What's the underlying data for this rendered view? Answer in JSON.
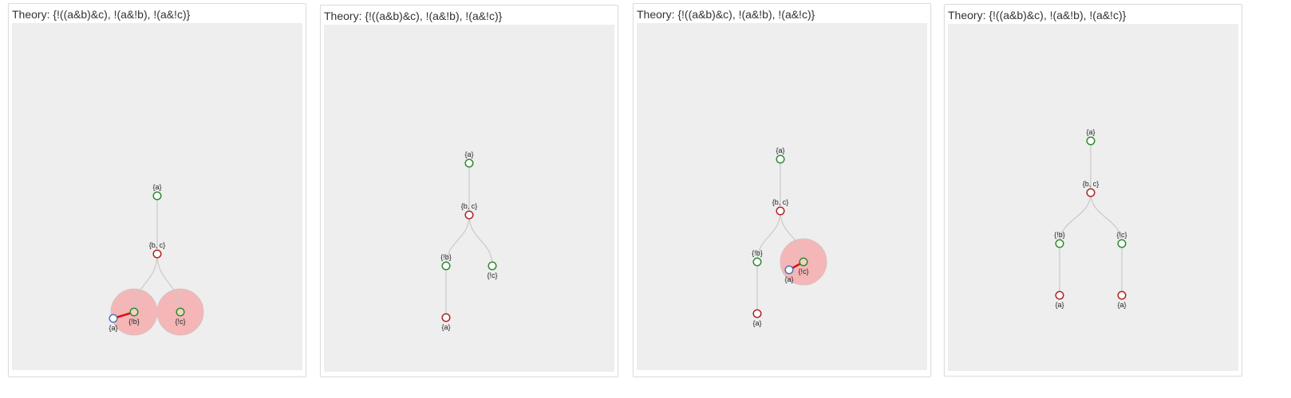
{
  "colors": {
    "satisfiable_node": "#2e8b2e",
    "unsatisfiable_node": "#b22222",
    "new_node": "#4a78b5",
    "edge": "#c9c9c9",
    "conflict_edge": "#e01010",
    "conflict_halo": "#f4b6b6"
  },
  "panels": [
    {
      "title": "Theory: {!((a&b)&c), !(a&!b), !(a&!c)}",
      "nodes": [
        {
          "id": "root",
          "label": "{a}",
          "status": "sat"
        },
        {
          "id": "n1",
          "label": "{b, c}",
          "status": "unsat"
        },
        {
          "id": "n2",
          "label": "{!b}",
          "status": "sat",
          "halo": true
        },
        {
          "id": "n3",
          "label": "{!c}",
          "status": "sat",
          "halo": true
        },
        {
          "id": "n4",
          "label": "{a}",
          "status": "new"
        }
      ],
      "edges": [
        {
          "from": "root",
          "to": "n1",
          "kind": "straight"
        },
        {
          "from": "n1",
          "to": "n2",
          "kind": "curve"
        },
        {
          "from": "n1",
          "to": "n3",
          "kind": "curve"
        },
        {
          "from": "n4",
          "to": "n2",
          "kind": "conflict"
        }
      ]
    },
    {
      "title": "Theory: {!((a&b)&c), !(a&!b), !(a&!c)}",
      "nodes": [
        {
          "id": "root",
          "label": "{a}",
          "status": "sat"
        },
        {
          "id": "n1",
          "label": "{b, c}",
          "status": "unsat"
        },
        {
          "id": "n2",
          "label": "{!b}",
          "status": "sat"
        },
        {
          "id": "n3",
          "label": "{!c}",
          "status": "sat"
        },
        {
          "id": "n4",
          "label": "{a}",
          "status": "unsat"
        }
      ],
      "edges": [
        {
          "from": "root",
          "to": "n1",
          "kind": "straight"
        },
        {
          "from": "n1",
          "to": "n2",
          "kind": "curve"
        },
        {
          "from": "n1",
          "to": "n3",
          "kind": "curve"
        },
        {
          "from": "n2",
          "to": "n4",
          "kind": "straight"
        }
      ]
    },
    {
      "title": "Theory: {!((a&b)&c), !(a&!b), !(a&!c)}",
      "nodes": [
        {
          "id": "root",
          "label": "{a}",
          "status": "sat"
        },
        {
          "id": "n1",
          "label": "{b, c}",
          "status": "unsat"
        },
        {
          "id": "n2",
          "label": "{!b}",
          "status": "sat"
        },
        {
          "id": "n3",
          "label": "{!c}",
          "status": "sat",
          "halo": true
        },
        {
          "id": "n4",
          "label": "{a}",
          "status": "unsat"
        },
        {
          "id": "n5",
          "label": "{a}",
          "status": "new"
        }
      ],
      "edges": [
        {
          "from": "root",
          "to": "n1",
          "kind": "straight"
        },
        {
          "from": "n1",
          "to": "n2",
          "kind": "curve"
        },
        {
          "from": "n1",
          "to": "n3",
          "kind": "curve"
        },
        {
          "from": "n2",
          "to": "n4",
          "kind": "straight"
        },
        {
          "from": "n5",
          "to": "n3",
          "kind": "conflict"
        }
      ]
    },
    {
      "title": "Theory: {!((a&b)&c), !(a&!b), !(a&!c)}",
      "nodes": [
        {
          "id": "root",
          "label": "{a}",
          "status": "sat"
        },
        {
          "id": "n1",
          "label": "{b, c}",
          "status": "unsat"
        },
        {
          "id": "n2",
          "label": "{!b}",
          "status": "sat"
        },
        {
          "id": "n3",
          "label": "{!c}",
          "status": "sat"
        },
        {
          "id": "n4",
          "label": "{a}",
          "status": "unsat"
        },
        {
          "id": "n5",
          "label": "{a}",
          "status": "unsat"
        }
      ],
      "edges": [
        {
          "from": "root",
          "to": "n1",
          "kind": "straight"
        },
        {
          "from": "n1",
          "to": "n2",
          "kind": "curve"
        },
        {
          "from": "n1",
          "to": "n3",
          "kind": "curve"
        },
        {
          "from": "n2",
          "to": "n4",
          "kind": "straight"
        },
        {
          "from": "n3",
          "to": "n5",
          "kind": "straight"
        }
      ]
    }
  ]
}
